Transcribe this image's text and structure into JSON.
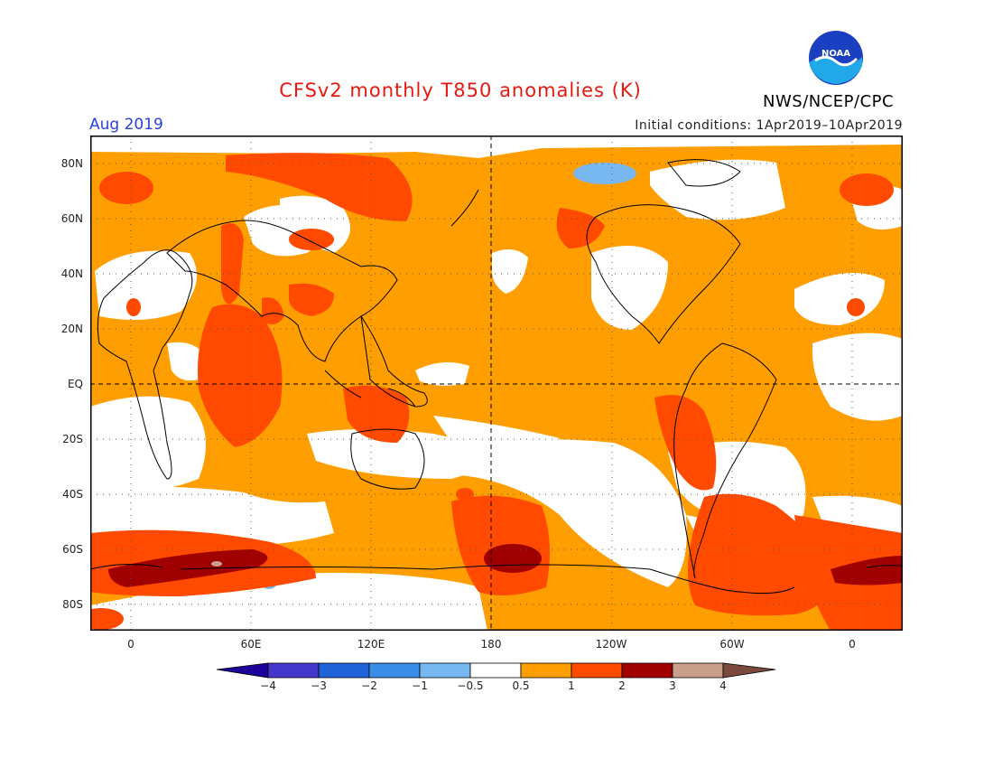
{
  "title": "CFSv2 monthly T850 anomalies (K)",
  "month": "Aug 2019",
  "initial_conditions": "Initial conditions: 1Apr2019–10Apr2019",
  "agency": "NWS/NCEP/CPC",
  "logo_text": "NOAA",
  "latitude_labels": [
    "80N",
    "60N",
    "40N",
    "20N",
    "EQ",
    "20S",
    "40S",
    "60S",
    "80S"
  ],
  "longitude_labels": [
    "0",
    "60E",
    "120E",
    "180",
    "120W",
    "60W",
    "0"
  ],
  "colorbar": {
    "labels": [
      "−4",
      "−3",
      "−2",
      "−1",
      "−0.5",
      "0.5",
      "1",
      "2",
      "3",
      "4"
    ],
    "colors": [
      "#1c0099",
      "#4637cc",
      "#1e63d8",
      "#3b8ee8",
      "#78b8f0",
      "#ffffff",
      "#ff9e00",
      "#ff4a00",
      "#a00000",
      "#c8a08c",
      "#7a4a3c"
    ]
  }
}
